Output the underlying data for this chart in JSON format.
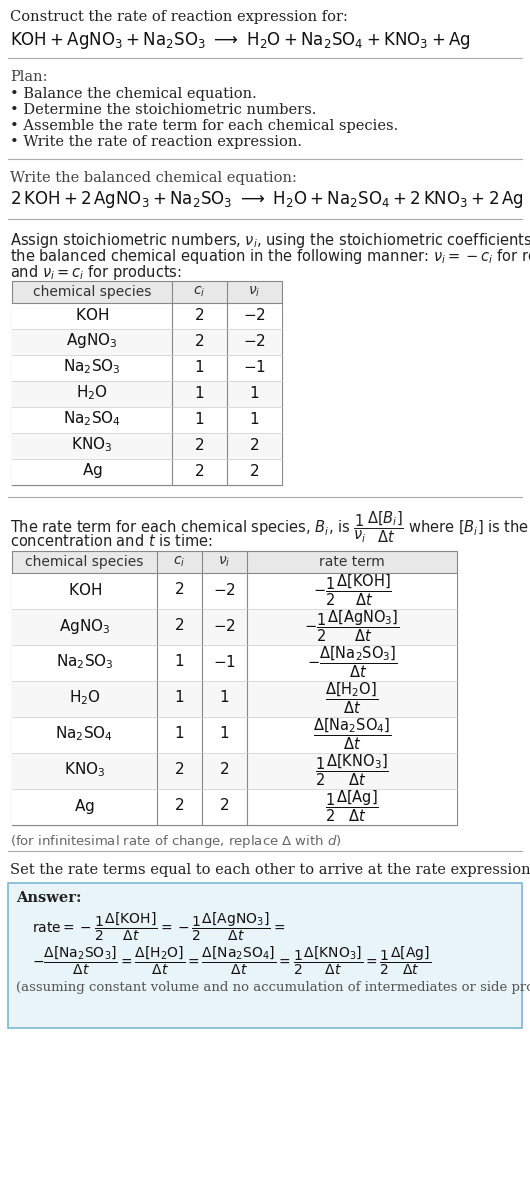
{
  "bg_color": "#ffffff",
  "separator_color": "#aaaaaa",
  "table_header_bg": "#e8e8e8",
  "table_border": "#888888",
  "answer_bg": "#e8f4f8",
  "answer_border": "#7ab8d4",
  "text_dark": "#111111",
  "text_medium": "#333333",
  "text_light": "#666666",
  "section1_line1": "Construct the rate of reaction expression for:",
  "section1_eq": "$\\mathrm{KOH + AgNO_3 + Na_2SO_3 \\ \\longrightarrow \\ H_2O + Na_2SO_4 + KNO_3 + Ag}$",
  "plan_header": "Plan:",
  "plan_items": [
    "\\bullet \\ \\mathrm{Balance\\ the\\ chemical\\ equation.}",
    "\\bullet \\ \\mathrm{Determine\\ the\\ stoichiometric\\ numbers.}",
    "\\bullet \\ \\mathrm{Assemble\\ the\\ rate\\ term\\ for\\ each\\ chemical\\ species.}",
    "\\bullet \\ \\mathrm{Write\\ the\\ rate\\ of\\ reaction\\ expression.}"
  ],
  "plan_items_plain": [
    "• Balance the chemical equation.",
    "• Determine the stoichiometric numbers.",
    "• Assemble the rate term for each chemical species.",
    "• Write the rate of reaction expression."
  ],
  "balanced_header": "Write the balanced chemical equation:",
  "balanced_eq": "$\\mathrm{2\\,KOH + 2\\,AgNO_3 + Na_2SO_3 \\ \\longrightarrow \\ H_2O + Na_2SO_4 + 2\\,KNO_3 + 2\\,Ag}$",
  "assign_text1": "Assign stoichiometric numbers, $\\nu_i$, using the stoichiometric coefficients, $c_i$, from",
  "assign_text2": "the balanced chemical equation in the following manner: $\\nu_i = -c_i$ for reactants",
  "assign_text3": "and $\\nu_i = c_i$ for products:",
  "table1_species": [
    "KOH",
    "AgNO$_3$",
    "Na$_2$SO$_3$",
    "H$_2$O",
    "Na$_2$SO$_4$",
    "KNO$_3$",
    "Ag"
  ],
  "table1_ci": [
    "2",
    "2",
    "1",
    "1",
    "1",
    "2",
    "2"
  ],
  "table1_ni": [
    "-2",
    "-2",
    "-1",
    "1",
    "1",
    "2",
    "2"
  ],
  "rate_text1": "The rate term for each chemical species, $B_i$, is $\\dfrac{1}{\\nu_i}\\dfrac{\\Delta[B_i]}{\\Delta t}$ where $[B_i]$ is the amount",
  "rate_text2": "concentration and $t$ is time:",
  "table2_species": [
    "KOH",
    "AgNO$_3$",
    "Na$_2$SO$_3$",
    "H$_2$O",
    "Na$_2$SO$_4$",
    "KNO$_3$",
    "Ag"
  ],
  "table2_ci": [
    "2",
    "2",
    "1",
    "1",
    "1",
    "2",
    "2"
  ],
  "table2_ni": [
    "-2",
    "-2",
    "-1",
    "1",
    "1",
    "2",
    "2"
  ],
  "table2_rate": [
    "$-\\dfrac{1}{2}\\dfrac{\\Delta[\\mathrm{KOH}]}{\\Delta t}$",
    "$-\\dfrac{1}{2}\\dfrac{\\Delta[\\mathrm{AgNO_3}]}{\\Delta t}$",
    "$-\\dfrac{\\Delta[\\mathrm{Na_2SO_3}]}{\\Delta t}$",
    "$\\dfrac{\\Delta[\\mathrm{H_2O}]}{\\Delta t}$",
    "$\\dfrac{\\Delta[\\mathrm{Na_2SO_4}]}{\\Delta t}$",
    "$\\dfrac{1}{2}\\dfrac{\\Delta[\\mathrm{KNO_3}]}{\\Delta t}$",
    "$\\dfrac{1}{2}\\dfrac{\\Delta[\\mathrm{Ag}]}{\\Delta t}$"
  ],
  "infinitesimal": "(for infinitesimal rate of change, replace Δ with d)",
  "set_rate_text": "Set the rate terms equal to each other to arrive at the rate expression:",
  "answer_label": "Answer:",
  "answer_rate_line1": "$\\mathrm{rate} = -\\dfrac{1}{2}\\dfrac{\\Delta[\\mathrm{KOH}]}{\\Delta t} = -\\dfrac{1}{2}\\dfrac{\\Delta[\\mathrm{AgNO_3}]}{\\Delta t} =$",
  "answer_rate_line2": "$-\\dfrac{\\Delta[\\mathrm{Na_2SO_3}]}{\\Delta t} = \\dfrac{\\Delta[\\mathrm{H_2O}]}{\\Delta t} = \\dfrac{\\Delta[\\mathrm{Na_2SO_4}]}{\\Delta t} = \\dfrac{1}{2}\\dfrac{\\Delta[\\mathrm{KNO_3}]}{\\Delta t} = \\dfrac{1}{2}\\dfrac{\\Delta[\\mathrm{Ag}]}{\\Delta t}$",
  "answer_note": "(assuming constant volume and no accumulation of intermediates or side products)"
}
